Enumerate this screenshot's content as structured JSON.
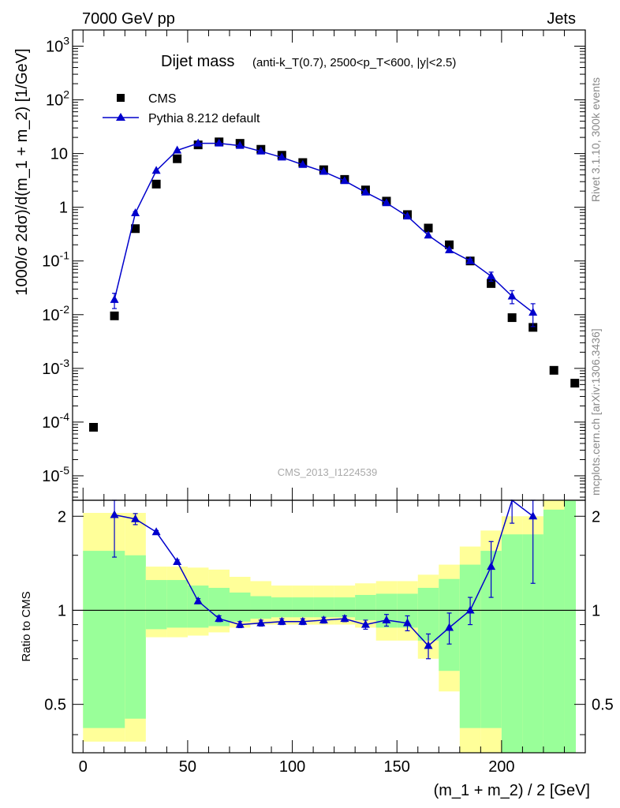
{
  "header": {
    "left": "7000 GeV pp",
    "right": "Jets"
  },
  "side_labels": {
    "rivet": "Rivet 3.1.10,  300k events",
    "site": "mcplots.cern.ch [arXiv:1306.3436]"
  },
  "watermark": "CMS_2013_I1224539",
  "colors": {
    "mc": "#0000cc",
    "data": "#000000",
    "band_inner": "#99ff99",
    "band_outer": "#ffff99"
  },
  "chart_data": [
    {
      "type": "scatter",
      "title_main": "Dijet mass",
      "title_detail": "(anti-k_T(0.7), 2500<p_T<600, |y|<2.5)",
      "ylabel": "1000/σ 2dσ)/d(m_1 + m_2) [1/GeV]",
      "yscale": "log",
      "ylim": [
        3.5e-06,
        2000
      ],
      "xlim": [
        -5,
        240
      ],
      "y_ticks": [
        {
          "v": 1e-05,
          "b": "10",
          "e": "-5"
        },
        {
          "v": 0.0001,
          "b": "10",
          "e": "-4"
        },
        {
          "v": 0.001,
          "b": "10",
          "e": "-3"
        },
        {
          "v": 0.01,
          "b": "10",
          "e": "-2"
        },
        {
          "v": 0.1,
          "b": "10",
          "e": "-1"
        },
        {
          "v": 1,
          "b": "1",
          "e": ""
        },
        {
          "v": 10,
          "b": "10",
          "e": ""
        },
        {
          "v": 100,
          "b": "10",
          "e": "2"
        },
        {
          "v": 1000,
          "b": "10",
          "e": "3"
        }
      ],
      "legend_position": "top-left",
      "series": [
        {
          "name": "CMS",
          "marker": "square",
          "x": [
            5,
            15,
            25,
            35,
            45,
            55,
            65,
            75,
            85,
            95,
            105,
            115,
            125,
            135,
            145,
            155,
            165,
            175,
            185,
            195,
            205,
            215,
            225,
            235
          ],
          "y": [
            8e-05,
            0.0095,
            0.4,
            2.7,
            8.0,
            14.5,
            16.5,
            15.5,
            12.0,
            9.3,
            6.8,
            5.0,
            3.3,
            2.1,
            1.3,
            0.73,
            0.41,
            0.2,
            0.1,
            0.038,
            0.0088,
            0.0058,
            0.00092,
            0.00053
          ]
        },
        {
          "name": "Pythia 8.212 default",
          "marker": "triangle",
          "x": [
            15,
            25,
            35,
            45,
            55,
            65,
            75,
            85,
            95,
            105,
            115,
            125,
            135,
            145,
            155,
            165,
            175,
            185,
            195,
            205,
            215
          ],
          "y": [
            0.019,
            0.78,
            4.8,
            11.5,
            15.5,
            15.5,
            14.0,
            11.0,
            8.5,
            6.2,
            4.6,
            3.1,
            1.9,
            1.2,
            0.68,
            0.3,
            0.16,
            0.1,
            0.052,
            0.022,
            0.011
          ],
          "err": [
            0.006,
            0.05,
            0.2,
            0.3,
            0.3,
            0.3,
            0.3,
            0.25,
            0.2,
            0.15,
            0.12,
            0.08,
            0.05,
            0.04,
            0.03,
            0.015,
            0.01,
            0.008,
            0.01,
            0.006,
            0.005
          ]
        }
      ]
    },
    {
      "type": "line",
      "ylabel": "Ratio to CMS",
      "xlabel": "(m_1 + m_2) / 2 [GeV]",
      "ylim": [
        0.35,
        2.25
      ],
      "xlim": [
        -5,
        240
      ],
      "x_ticks": [
        0,
        50,
        100,
        150,
        200
      ],
      "y_ticks": [
        0.5,
        1,
        2
      ],
      "reference_line": 1,
      "bands": {
        "edges": [
          0,
          20,
          30,
          40,
          50,
          60,
          70,
          80,
          90,
          100,
          110,
          120,
          130,
          140,
          150,
          160,
          170,
          180,
          190,
          200,
          210,
          220,
          230,
          240
        ],
        "outer_low": [
          0.38,
          0.38,
          0.82,
          0.82,
          0.83,
          0.85,
          0.88,
          0.9,
          0.9,
          0.9,
          0.9,
          0.9,
          0.88,
          0.8,
          0.8,
          0.7,
          0.55,
          0.3,
          0.3,
          0.3,
          0.3,
          0.3,
          0.3
        ],
        "outer_high": [
          2.05,
          2.05,
          1.38,
          1.38,
          1.37,
          1.35,
          1.28,
          1.24,
          1.2,
          1.2,
          1.2,
          1.2,
          1.22,
          1.24,
          1.24,
          1.3,
          1.4,
          1.6,
          1.8,
          2.0,
          2.0,
          2.4,
          2.4
        ],
        "inner_low": [
          0.42,
          0.45,
          0.87,
          0.88,
          0.88,
          0.89,
          0.92,
          0.94,
          0.95,
          0.95,
          0.95,
          0.95,
          0.93,
          0.88,
          0.88,
          0.8,
          0.64,
          0.42,
          0.42,
          0.35,
          0.3,
          0.3,
          0.3
        ],
        "inner_high": [
          1.55,
          1.5,
          1.25,
          1.25,
          1.2,
          1.18,
          1.14,
          1.11,
          1.1,
          1.1,
          1.1,
          1.1,
          1.12,
          1.13,
          1.13,
          1.18,
          1.26,
          1.4,
          1.55,
          1.75,
          1.75,
          2.1,
          2.4
        ]
      },
      "series": [
        {
          "name": "Pythia 8.212 default",
          "x": [
            15,
            25,
            35,
            45,
            55,
            65,
            75,
            85,
            95,
            105,
            115,
            125,
            135,
            145,
            155,
            165,
            175,
            185,
            195,
            205,
            215
          ],
          "y": [
            2.02,
            1.96,
            1.78,
            1.43,
            1.07,
            0.94,
            0.9,
            0.91,
            0.92,
            0.92,
            0.93,
            0.94,
            0.9,
            0.93,
            0.91,
            0.77,
            0.88,
            1.0,
            1.38,
            2.5,
            2.0
          ],
          "err_low": [
            0.54,
            0.08,
            0.02,
            0.02,
            0.02,
            0.02,
            0.02,
            0.02,
            0.02,
            0.02,
            0.02,
            0.02,
            0.03,
            0.04,
            0.05,
            0.07,
            0.1,
            0.1,
            0.28,
            0.6,
            0.78
          ],
          "err_high": [
            0.25,
            0.08,
            0.02,
            0.02,
            0.02,
            0.02,
            0.02,
            0.02,
            0.02,
            0.02,
            0.02,
            0.02,
            0.03,
            0.04,
            0.05,
            0.07,
            0.1,
            0.1,
            0.28,
            0.6,
            0.25
          ]
        }
      ]
    }
  ]
}
